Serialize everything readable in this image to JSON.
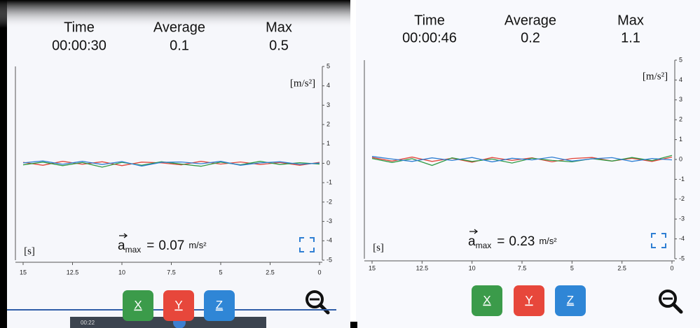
{
  "panels": [
    {
      "stats": [
        {
          "label": "Time",
          "value": "00:00:30"
        },
        {
          "label": "Average",
          "value": 0.1
        },
        {
          "label": "Max",
          "value": 0.5
        }
      ],
      "chart_data": {
        "type": "line",
        "y_label": "[m/s²]",
        "x_label": "[s]",
        "x": [
          15,
          14,
          13,
          12,
          11,
          10,
          9,
          8,
          7,
          6,
          5,
          4,
          3,
          2,
          1,
          0
        ],
        "xlim": [
          15,
          0
        ],
        "xticks": [
          15,
          12.5,
          10,
          7.5,
          5,
          2.5,
          0
        ],
        "ylim": [
          -5,
          5
        ],
        "yticks": [
          -5,
          -4,
          -3,
          -2,
          -1,
          0,
          1,
          2,
          3,
          4,
          5
        ],
        "series": [
          {
            "color": "#e2453a",
            "values": [
              0.05,
              -0.1,
              0.1,
              -0.05,
              0.08,
              -0.12,
              0.06,
              0.02,
              -0.08,
              0.1,
              -0.04,
              0.07,
              -0.06,
              0.04,
              -0.1,
              0.05
            ]
          },
          {
            "color": "#2f9a44",
            "values": [
              -0.08,
              0.06,
              -0.12,
              0.04,
              -0.2,
              0.05,
              -0.1,
              0.08,
              -0.04,
              -0.15,
              0.06,
              -0.08,
              0.1,
              -0.06,
              0.03,
              -0.04
            ]
          },
          {
            "color": "#2f7fd3",
            "values": [
              0.02,
              0.12,
              -0.05,
              0.1,
              -0.06,
              0.09,
              -0.14,
              0.05,
              0.07,
              -0.02,
              0.1,
              -0.1,
              0.02,
              0.08,
              -0.05,
              0.01
            ]
          }
        ]
      },
      "amax": {
        "symbol": "a",
        "subscript": "max",
        "equals": "=",
        "value": 0.07,
        "unit": "m/s²"
      },
      "buttons": [
        "X",
        "Y",
        "Z"
      ]
    },
    {
      "stats": [
        {
          "label": "Time",
          "value": "00:00:46"
        },
        {
          "label": "Average",
          "value": 0.2
        },
        {
          "label": "Max",
          "value": 1.1
        }
      ],
      "chart_data": {
        "type": "line",
        "y_label": "[m/s²]",
        "x_label": "[s]",
        "x": [
          15,
          14,
          13,
          12,
          11,
          10,
          9,
          8,
          7,
          6,
          5,
          4,
          3,
          2,
          1,
          0
        ],
        "xlim": [
          15,
          0
        ],
        "xticks": [
          15,
          12.5,
          10,
          7.5,
          5,
          2.5,
          0
        ],
        "ylim": [
          -5,
          5
        ],
        "yticks": [
          -5,
          -4,
          -3,
          -2,
          -1,
          0,
          1,
          2,
          3,
          4,
          5
        ],
        "series": [
          {
            "color": "#e2453a",
            "values": [
              0.1,
              -0.08,
              0.12,
              -0.1,
              0.06,
              -0.14,
              0.1,
              -0.05,
              0.08,
              -0.12,
              0.05,
              0.1,
              -0.08,
              0.06,
              -0.1,
              0.12
            ]
          },
          {
            "color": "#2f9a44",
            "values": [
              0.05,
              -0.15,
              0.04,
              -0.3,
              0.08,
              -0.1,
              0.02,
              -0.18,
              0.06,
              -0.05,
              -0.12,
              0.04,
              -0.08,
              0.1,
              -0.06,
              0.2
            ]
          },
          {
            "color": "#2f7fd3",
            "values": [
              0.15,
              0.02,
              -0.1,
              0.08,
              -0.05,
              0.1,
              -0.12,
              0.06,
              -0.02,
              0.12,
              -0.08,
              0.03,
              0.09,
              -0.1,
              0.05,
              -0.02
            ]
          }
        ]
      },
      "amax": {
        "symbol": "a",
        "subscript": "max",
        "equals": "=",
        "value": 0.23,
        "unit": "m/s²"
      },
      "buttons": [
        "X",
        "Y",
        "Z"
      ]
    }
  ],
  "player": {
    "time": "00:22"
  }
}
